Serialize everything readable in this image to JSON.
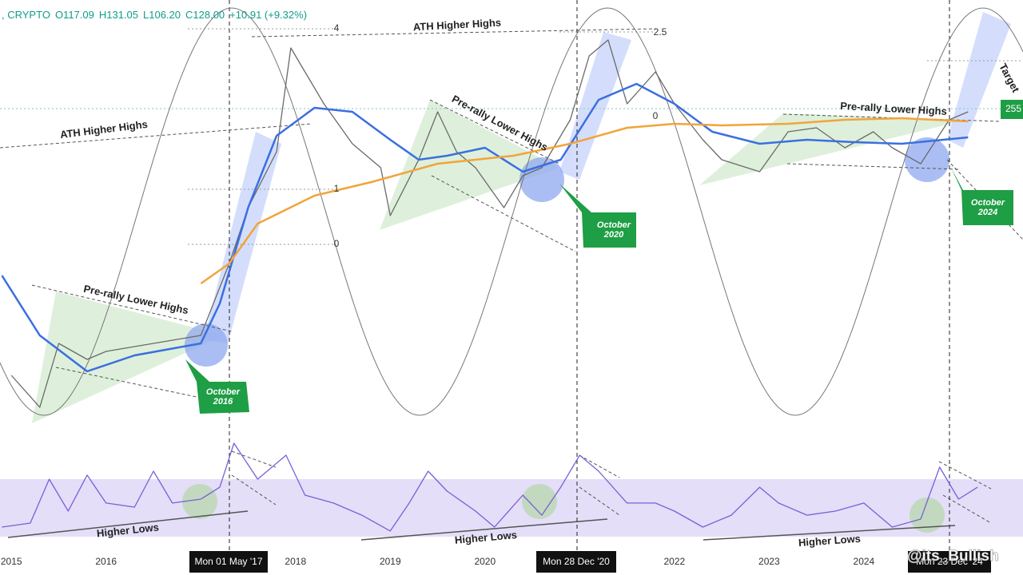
{
  "chart_data": [
    {
      "type": "line",
      "header": [
        ", CRYPTO",
        "O117.09",
        "H131.05",
        "L106.20",
        "C128.00",
        "+10.91 (+9.32%)"
      ],
      "xlim": [
        2014.88,
        2025.68
      ],
      "ylim": [
        0,
        545
      ],
      "xticks": [
        2015,
        2016,
        2018,
        2019,
        2020,
        2022,
        2023,
        2024
      ],
      "series": [
        {
          "color": "#6a6a6a",
          "x": [
            2015.0,
            2015.3,
            2015.5,
            2015.8,
            2016.0,
            2016.5,
            2017.0,
            2017.3,
            2017.5,
            2017.8,
            2017.95,
            2018.1,
            2018.3,
            2018.6,
            2018.9,
            2019.0,
            2019.3,
            2019.5,
            2019.7,
            2019.9,
            2020.2,
            2020.4,
            2020.6,
            2020.9,
            2021.1,
            2021.3,
            2021.5,
            2021.8,
            2022.0,
            2022.3,
            2022.5,
            2022.9,
            2023.2,
            2023.5,
            2023.8,
            2024.1,
            2024.3,
            2024.6,
            2024.9,
            2025.1
          ],
          "values": [
            75,
            35,
            115,
            95,
            105,
            115,
            125,
            215,
            285,
            355,
            485,
            455,
            415,
            365,
            335,
            275,
            345,
            405,
            355,
            335,
            285,
            325,
            335,
            395,
            475,
            495,
            415,
            455,
            415,
            370,
            345,
            330,
            380,
            385,
            360,
            380,
            360,
            340,
            395,
            405
          ]
        },
        {
          "color": "#3b6fe0",
          "x": [
            2014.9,
            2015.3,
            2015.8,
            2016.3,
            2017.0,
            2017.2,
            2017.5,
            2017.8,
            2018.2,
            2018.6,
            2019.0,
            2019.3,
            2019.6,
            2020.0,
            2020.4,
            2020.8,
            2021.2,
            2021.6,
            2022.0,
            2022.4,
            2022.9,
            2023.4,
            2023.9,
            2024.4,
            2025.1
          ],
          "values": [
            200,
            125,
            80,
            100,
            115,
            165,
            285,
            375,
            410,
            405,
            370,
            345,
            350,
            360,
            330,
            345,
            420,
            440,
            415,
            380,
            365,
            370,
            367,
            365,
            373
          ]
        },
        {
          "color": "#f2a43a",
          "x": [
            2017.0,
            2017.3,
            2017.6,
            2018.2,
            2018.8,
            2019.5,
            2020.3,
            2020.9,
            2021.5,
            2022.0,
            2022.5,
            2023.2,
            2023.8,
            2024.4,
            2025.1
          ],
          "values": [
            190,
            215,
            265,
            300,
            317,
            340,
            350,
            365,
            385,
            390,
            388,
            390,
            395,
            397,
            393
          ]
        }
      ],
      "annotations": [
        "ATH Higher Highs",
        "ATH Higher Highs",
        "Pre-rally Lower Highs",
        "Pre-rally Lower Highs",
        "Pre-rally Lower Highs",
        "Target"
      ],
      "fib_labels": [
        4,
        2.5,
        0,
        1,
        0
      ],
      "callouts": [
        [
          "October",
          "2016"
        ],
        [
          "October",
          "2020"
        ],
        [
          "October",
          "2024"
        ]
      ],
      "price_badge": "255",
      "date_labels": [
        "Mon 01 May '17",
        "Mon 28 Dec '20",
        "Mon 23 Dec '24"
      ],
      "watermark": "@its_Bullish"
    },
    {
      "type": "line",
      "xlim": [
        2014.88,
        2025.68
      ],
      "ylim": [
        0,
        100
      ],
      "series": [
        {
          "color": "#7b5fd6",
          "x": [
            2014.9,
            2015.2,
            2015.4,
            2015.6,
            2015.8,
            2016.0,
            2016.3,
            2016.5,
            2016.7,
            2017.0,
            2017.2,
            2017.35,
            2017.6,
            2017.9,
            2018.1,
            2018.4,
            2018.7,
            2019.0,
            2019.2,
            2019.4,
            2019.6,
            2019.9,
            2020.1,
            2020.4,
            2020.6,
            2020.8,
            2021.0,
            2021.2,
            2021.5,
            2021.8,
            2022.0,
            2022.3,
            2022.6,
            2022.9,
            2023.1,
            2023.4,
            2023.7,
            2024.0,
            2024.3,
            2024.6,
            2024.8,
            2025.0,
            2025.2
          ],
          "values": [
            21.4,
            25,
            64.3,
            35.7,
            67.9,
            42.9,
            39.3,
            71.4,
            42.9,
            46.4,
            57.1,
            96.4,
            64.3,
            85.7,
            50,
            42.9,
            32.1,
            17.9,
            42.9,
            71.4,
            53.6,
            35.7,
            21.4,
            50,
            32.1,
            57.1,
            85.7,
            71.4,
            42.9,
            42.9,
            35.7,
            21.4,
            32.1,
            57.1,
            42.9,
            32.1,
            35.7,
            42.9,
            21.4,
            28.6,
            75,
            46.4,
            57.1
          ]
        }
      ],
      "annotations": [
        "Higher Lows",
        "Higher Lows",
        "Higher Lows"
      ]
    }
  ]
}
